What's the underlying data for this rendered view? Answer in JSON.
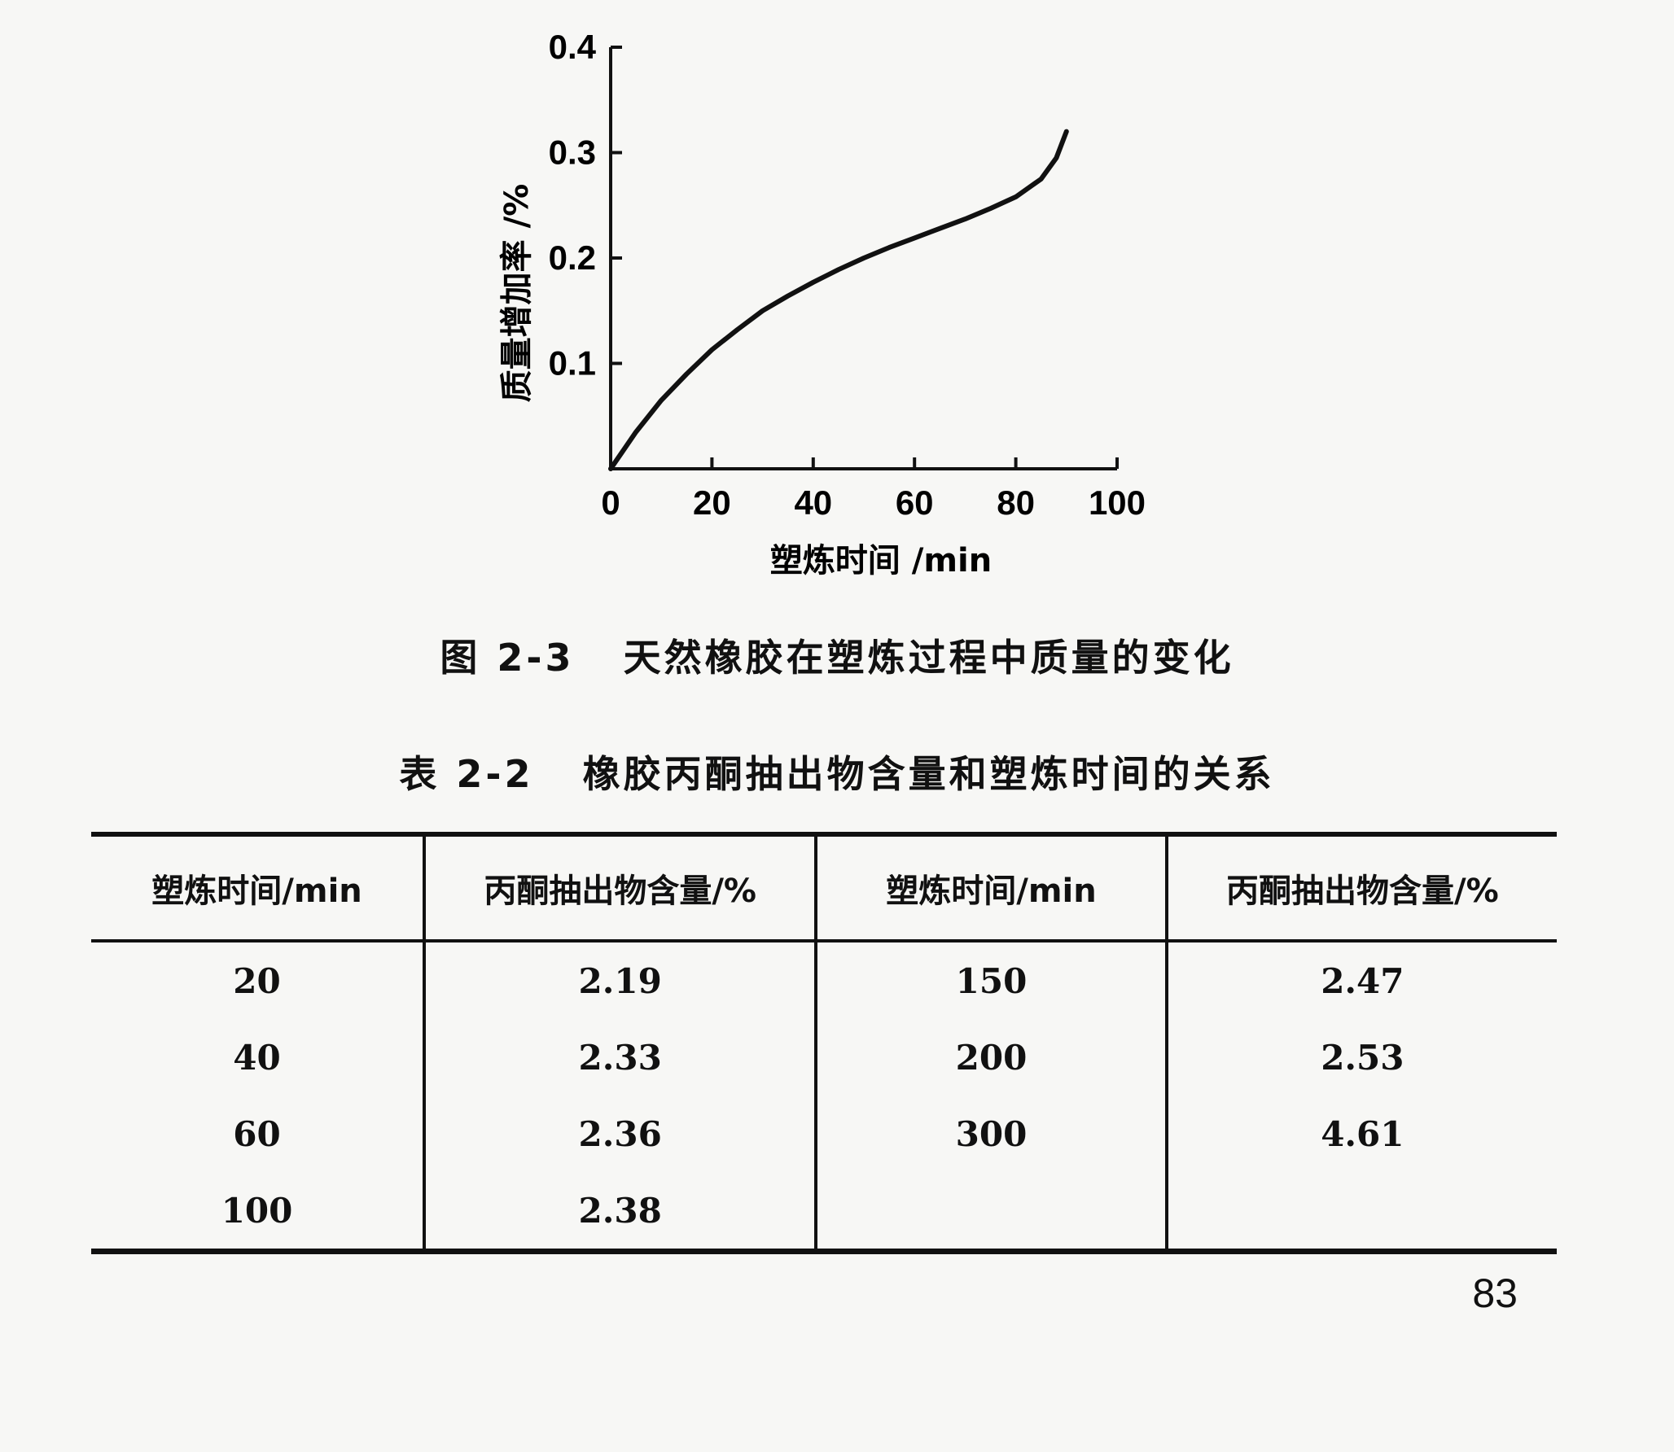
{
  "figure": {
    "caption": "图 2-3   天然橡胶在塑炼过程中质量的变化"
  },
  "chart_data": {
    "type": "line",
    "xlabel": "塑炼时间 /min",
    "ylabel": "质量增加率 /%",
    "xlim": [
      0,
      100
    ],
    "ylim": [
      0,
      0.4
    ],
    "xticks": [
      "0",
      "20",
      "40",
      "60",
      "80",
      "100"
    ],
    "yticks": [
      "0.1",
      "0.2",
      "0.3",
      "0.4"
    ],
    "grid": false,
    "series": [
      {
        "x": [
          0,
          5,
          10,
          15,
          20,
          25,
          30,
          35,
          40,
          45,
          50,
          55,
          60,
          65,
          70,
          75,
          80,
          85,
          88,
          90
        ],
        "y": [
          0,
          0.035,
          0.065,
          0.09,
          0.113,
          0.132,
          0.15,
          0.164,
          0.177,
          0.189,
          0.2,
          0.21,
          0.219,
          0.228,
          0.237,
          0.247,
          0.258,
          0.275,
          0.295,
          0.32
        ]
      }
    ]
  },
  "table": {
    "caption": "表 2-2   橡胶丙酮抽出物含量和塑炼时间的关系",
    "headers": [
      "塑炼时间/min",
      "丙酮抽出物含量/%",
      "塑炼时间/min",
      "丙酮抽出物含量/%"
    ],
    "rows": [
      [
        "20",
        "2.19",
        "150",
        "2.47"
      ],
      [
        "40",
        "2.33",
        "200",
        "2.53"
      ],
      [
        "60",
        "2.36",
        "300",
        "4.61"
      ],
      [
        "100",
        "2.38",
        "",
        ""
      ]
    ]
  },
  "page_number": "83"
}
